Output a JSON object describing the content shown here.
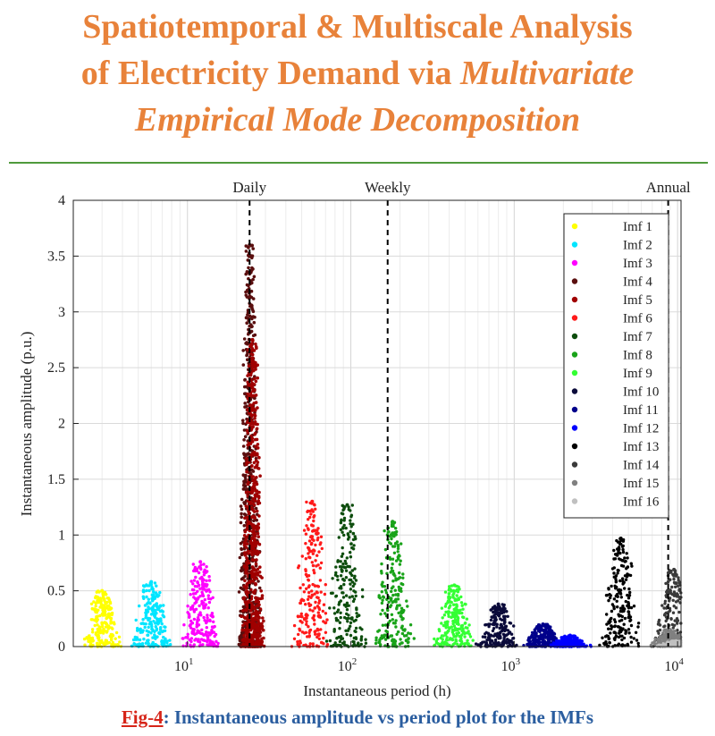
{
  "title": {
    "line1": "Spatiotemporal & Multiscale Analysis",
    "line2_prefix": "of Electricity Demand via ",
    "line2_italic": "Multivariate",
    "line3": "Empirical Mode Decomposition"
  },
  "caption": {
    "fig_label": "Fig-4",
    "text": ": Instantaneous amplitude vs period plot for the IMFs"
  },
  "colors": {
    "title": "#e8823a",
    "rule": "#4f9a3c",
    "caption_label": "#d62418",
    "caption_text": "#2a5d9f"
  },
  "chart_data": {
    "type": "scatter",
    "xlabel": "Instantaneous period (h)",
    "ylabel": "Instantaneous amplitude (p.u.)",
    "x_scale": "log",
    "xlim": [
      2,
      10500
    ],
    "ylim": [
      0,
      4
    ],
    "x_ticks": [
      {
        "value": 10,
        "base": "10",
        "exp": "1"
      },
      {
        "value": 100,
        "base": "10",
        "exp": "2"
      },
      {
        "value": 1000,
        "base": "10",
        "exp": "3"
      },
      {
        "value": 10000,
        "base": "10",
        "exp": "4"
      }
    ],
    "y_ticks": [
      0,
      0.5,
      1,
      1.5,
      2,
      2.5,
      3,
      3.5,
      4
    ],
    "y_tick_labels": [
      "0",
      "0.5",
      "1",
      "1.5",
      "2",
      "2.5",
      "3",
      "3.5",
      "4"
    ],
    "grid": true,
    "legend_position": "top-right",
    "reference_lines": [
      {
        "label": "Daily",
        "x": 24
      },
      {
        "label": "Weekly",
        "x": 168
      },
      {
        "label": "Annual",
        "x": 8760
      }
    ],
    "series": [
      {
        "name": "Imf 1",
        "color": "#ffff00",
        "center_period": 3,
        "peak_amplitude": 0.5
      },
      {
        "name": "Imf 2",
        "color": "#00e5ff",
        "center_period": 6,
        "peak_amplitude": 0.58
      },
      {
        "name": "Imf 3",
        "color": "#ff00ff",
        "center_period": 12,
        "peak_amplitude": 0.76
      },
      {
        "name": "Imf 4",
        "color": "#5a0f0f",
        "center_period": 24,
        "peak_amplitude": 3.6
      },
      {
        "name": "Imf 5",
        "color": "#a00000",
        "center_period": 25,
        "peak_amplitude": 2.75
      },
      {
        "name": "Imf 6",
        "color": "#ff1a1a",
        "center_period": 58,
        "peak_amplitude": 1.3
      },
      {
        "name": "Imf 7",
        "color": "#0d4d0d",
        "center_period": 95,
        "peak_amplitude": 1.27
      },
      {
        "name": "Imf 8",
        "color": "#19a319",
        "center_period": 180,
        "peak_amplitude": 1.12
      },
      {
        "name": "Imf 9",
        "color": "#33ff33",
        "center_period": 430,
        "peak_amplitude": 0.55
      },
      {
        "name": "Imf 10",
        "color": "#0a0a3a",
        "center_period": 800,
        "peak_amplitude": 0.38
      },
      {
        "name": "Imf 11",
        "color": "#00008b",
        "center_period": 1500,
        "peak_amplitude": 0.2
      },
      {
        "name": "Imf 12",
        "color": "#0000ff",
        "center_period": 2200,
        "peak_amplitude": 0.1
      },
      {
        "name": "Imf 13",
        "color": "#000000",
        "center_period": 4500,
        "peak_amplitude": 0.97
      },
      {
        "name": "Imf 14",
        "color": "#3a3a3a",
        "center_period": 9500,
        "peak_amplitude": 0.69
      },
      {
        "name": "Imf 15",
        "color": "#808080",
        "center_period": 9000,
        "peak_amplitude": 0.15
      },
      {
        "name": "Imf 16",
        "color": "#c0c0c0",
        "center_period": 9800,
        "peak_amplitude": 0.05
      }
    ]
  }
}
